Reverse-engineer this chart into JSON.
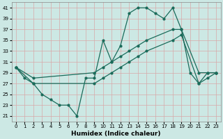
{
  "xlabel": "Humidex (Indice chaleur)",
  "background_color": "#cce8e4",
  "grid_color": "#d8a8a8",
  "line_color": "#1a6b5a",
  "xlim": [
    -0.5,
    23.5
  ],
  "ylim": [
    20.0,
    42.0
  ],
  "yticks": [
    21,
    23,
    25,
    27,
    29,
    31,
    33,
    35,
    37,
    39,
    41
  ],
  "xticks": [
    0,
    1,
    2,
    3,
    4,
    5,
    6,
    7,
    8,
    9,
    10,
    11,
    12,
    13,
    14,
    15,
    16,
    17,
    18,
    19,
    20,
    21,
    22,
    23
  ],
  "series": [
    {
      "x": [
        0,
        1,
        2,
        3,
        4,
        5,
        6,
        7,
        8,
        9,
        10,
        11,
        12,
        13,
        14,
        15,
        16,
        17,
        18,
        19,
        20,
        21,
        22,
        23
      ],
      "y": [
        30,
        28,
        27,
        25,
        24,
        23,
        23,
        21,
        28,
        28,
        35,
        31,
        34,
        40,
        41,
        41,
        40,
        39,
        41,
        37,
        29,
        27,
        29,
        29
      ]
    },
    {
      "x": [
        0,
        2,
        9,
        10,
        11,
        12,
        13,
        14,
        15,
        18,
        19,
        21,
        22,
        23
      ],
      "y": [
        30,
        28,
        29,
        30,
        31,
        32,
        33,
        34,
        35,
        37,
        37,
        29,
        29,
        29
      ]
    },
    {
      "x": [
        0,
        2,
        9,
        10,
        11,
        12,
        13,
        14,
        15,
        18,
        19,
        21,
        22,
        23
      ],
      "y": [
        30,
        27,
        27,
        28,
        29,
        30,
        31,
        32,
        33,
        35,
        36,
        27,
        28,
        29
      ]
    }
  ]
}
